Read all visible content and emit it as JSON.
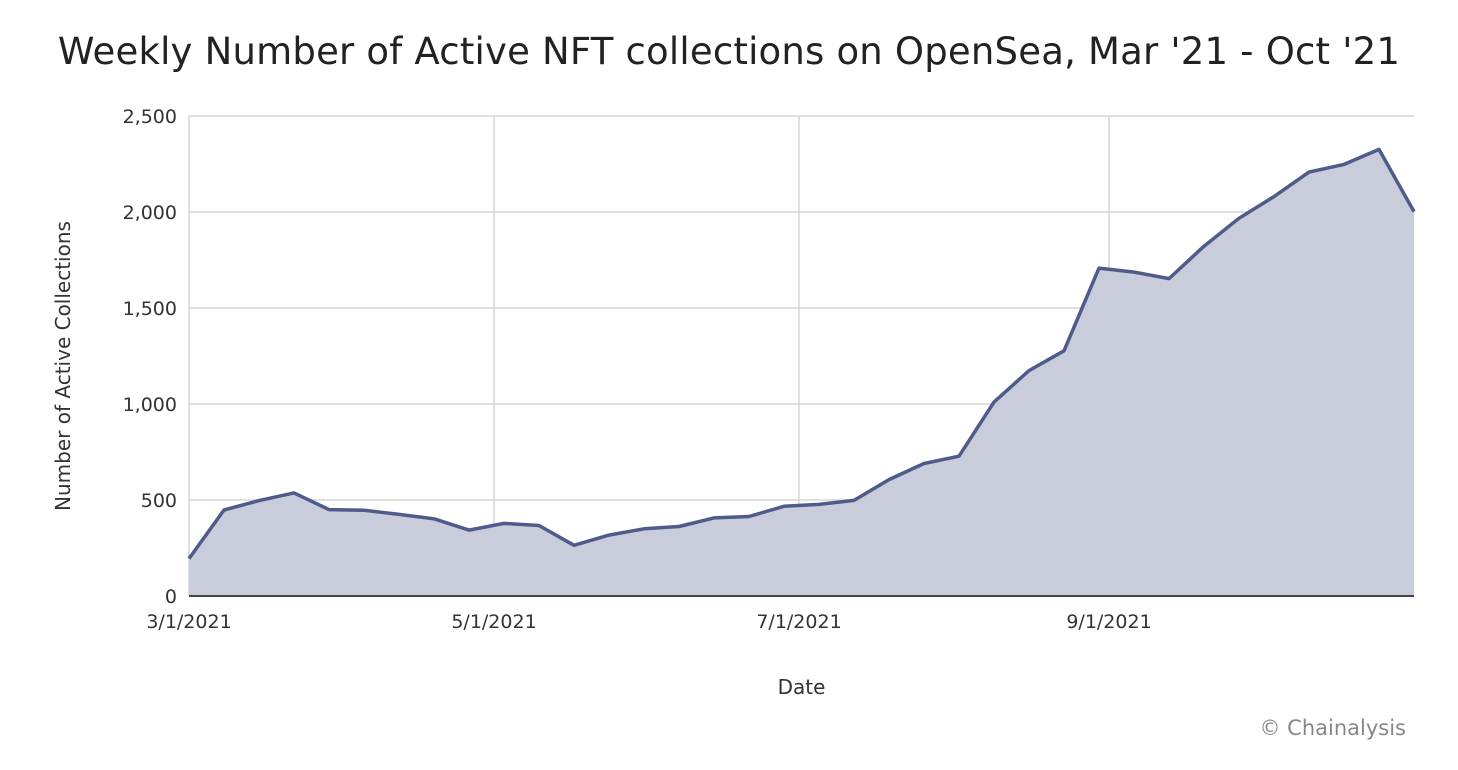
{
  "chart_data": {
    "type": "area",
    "title": "Weekly Number of Active NFT collections on OpenSea, Mar '21 - Oct '21",
    "xlabel": "Date",
    "ylabel": "Number of Active Collections",
    "x_ticks": [
      "3/1/2021",
      "5/1/2021",
      "7/1/2021",
      "9/1/2021"
    ],
    "x_tick_dates": [
      "2021-03-01",
      "2021-05-01",
      "2021-07-01",
      "2021-09-01"
    ],
    "y_ticks": [
      "0",
      "500",
      "1,000",
      "1,500",
      "2,000",
      "2,500"
    ],
    "y_tick_values": [
      0,
      500,
      1000,
      1500,
      2000,
      2500
    ],
    "ylim": [
      0,
      2500
    ],
    "xlim": [
      "2021-03-01",
      "2021-10-25"
    ],
    "grid": true,
    "series": [
      {
        "points": [
          [
            "2021-03-01",
            195
          ],
          [
            "2021-03-08",
            448
          ],
          [
            "2021-03-15",
            497
          ],
          [
            "2021-03-22",
            537
          ],
          [
            "2021-03-29",
            450
          ],
          [
            "2021-04-05",
            447
          ],
          [
            "2021-04-12",
            425
          ],
          [
            "2021-04-19",
            402
          ],
          [
            "2021-04-26",
            343
          ],
          [
            "2021-05-03",
            378
          ],
          [
            "2021-05-10",
            367
          ],
          [
            "2021-05-17",
            264
          ],
          [
            "2021-05-24",
            317
          ],
          [
            "2021-05-31",
            350
          ],
          [
            "2021-06-07",
            362
          ],
          [
            "2021-06-14",
            407
          ],
          [
            "2021-06-21",
            414
          ],
          [
            "2021-06-28",
            467
          ],
          [
            "2021-07-05",
            477
          ],
          [
            "2021-07-12",
            498
          ],
          [
            "2021-07-19",
            606
          ],
          [
            "2021-07-26",
            690
          ],
          [
            "2021-08-02",
            728
          ],
          [
            "2021-08-09",
            1010
          ],
          [
            "2021-08-16",
            1174
          ],
          [
            "2021-08-23",
            1277
          ],
          [
            "2021-08-30",
            1708
          ],
          [
            "2021-09-06",
            1687
          ],
          [
            "2021-09-13",
            1653
          ],
          [
            "2021-09-20",
            1822
          ],
          [
            "2021-09-27",
            1967
          ],
          [
            "2021-10-04",
            2080
          ],
          [
            "2021-10-11",
            2208
          ],
          [
            "2021-10-18",
            2248
          ],
          [
            "2021-10-25",
            2326
          ],
          [
            "2021-11-01",
            2002
          ]
        ]
      }
    ],
    "colors": {
      "line": "#4f5b8a",
      "fill": "#c9ccda",
      "grid": "#d6d6d6"
    }
  },
  "footer": {
    "credit": "© Chainalysis"
  }
}
